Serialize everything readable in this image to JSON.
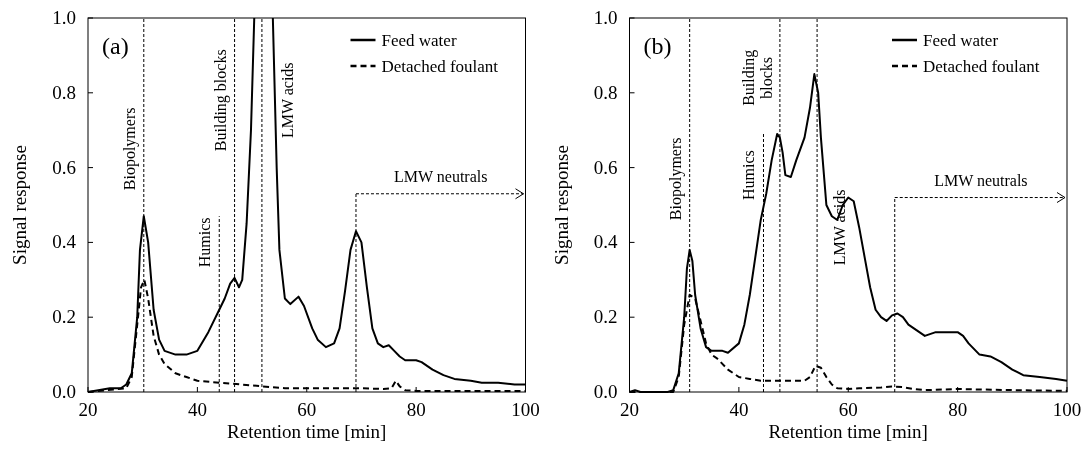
{
  "chart_data": [
    {
      "type": "line",
      "title": "(a)",
      "xlabel": "Retention time [min]",
      "ylabel": "Signal response",
      "xlim": [
        20,
        100
      ],
      "xticks": [
        20,
        40,
        60,
        80,
        100
      ],
      "ylim": [
        0,
        1
      ],
      "yticks": [
        {
          "value": 0,
          "label": "0.0"
        },
        {
          "value": 0.2,
          "label": "0.2"
        },
        {
          "value": 0.4,
          "label": "0.4"
        },
        {
          "value": 0.6,
          "label": "0.6"
        },
        {
          "value": 0.8,
          "label": "0.8"
        },
        {
          "value": 1,
          "label": "1.0"
        }
      ],
      "legend": "top right",
      "grid": false,
      "series": [
        {
          "name": "Feed water",
          "color": "#000000",
          "line_style": "solid",
          "x": [
            20,
            24,
            26,
            27,
            28,
            29,
            29.5,
            30.2,
            31,
            32,
            33,
            34,
            36,
            38,
            40,
            42,
            44,
            45,
            46,
            46.8,
            47.6,
            48.2,
            49,
            49.8,
            50.4,
            52,
            53.8,
            54.5,
            55,
            56,
            57,
            58.5,
            59.5,
            61,
            62,
            63.5,
            65,
            66,
            67,
            68,
            69,
            70,
            71,
            72,
            73,
            74,
            75,
            76,
            77,
            78,
            80,
            81,
            83,
            85,
            87,
            90,
            92,
            95,
            98,
            100
          ],
          "values": [
            0,
            0.01,
            0.01,
            0.02,
            0.05,
            0.2,
            0.38,
            0.47,
            0.4,
            0.22,
            0.14,
            0.11,
            0.1,
            0.1,
            0.11,
            0.16,
            0.22,
            0.25,
            0.29,
            0.305,
            0.28,
            0.3,
            0.45,
            0.7,
            1,
            null,
            1,
            0.6,
            0.38,
            0.25,
            0.235,
            0.255,
            0.23,
            0.17,
            0.14,
            0.12,
            0.13,
            0.17,
            0.27,
            0.38,
            0.43,
            0.4,
            0.28,
            0.17,
            0.13,
            0.12,
            0.125,
            0.11,
            0.095,
            0.085,
            0.085,
            0.08,
            0.06,
            0.045,
            0.035,
            0.03,
            0.025,
            0.025,
            0.02,
            0.02
          ]
        },
        {
          "name": "Detached foulant",
          "color": "#000000",
          "line_style": "dashed",
          "x": [
            20,
            27,
            28,
            29,
            29.7,
            30.3,
            31,
            32,
            33,
            34,
            36,
            38,
            40,
            44,
            48,
            52,
            56,
            60,
            70,
            74,
            75.5,
            76.3,
            77,
            78,
            80,
            100
          ],
          "values": [
            0,
            0.01,
            0.04,
            0.18,
            0.28,
            0.3,
            0.25,
            0.15,
            0.1,
            0.075,
            0.05,
            0.04,
            0.03,
            0.025,
            0.02,
            0.015,
            0.01,
            0.01,
            0.01,
            0.008,
            0.01,
            0.03,
            0.015,
            0.005,
            0.003,
            0.003
          ]
        }
      ],
      "ref_lines": [
        {
          "axis": "x",
          "value": 30.2,
          "label": "Biopolymers",
          "color": "#000000",
          "line_style": "dashed"
        },
        {
          "axis": "x",
          "value": 44,
          "label": "Humics",
          "color": "#000000",
          "line_style": "dashed"
        },
        {
          "axis": "x",
          "value": 46.8,
          "label": "Building blocks",
          "color": "#000000",
          "line_style": "dashed"
        },
        {
          "axis": "x",
          "value": 51.8,
          "label": "LMW acids",
          "color": "#000000",
          "line_style": "dashed"
        },
        {
          "axis": "x",
          "value": 69,
          "label": "LMW neutrals",
          "color": "#000000",
          "line_style": "dashed"
        }
      ]
    },
    {
      "type": "line",
      "title": "(b)",
      "xlabel": "Retention time [min]",
      "ylabel": "Signal response",
      "xlim": [
        20,
        100
      ],
      "xticks": [
        20,
        40,
        60,
        80,
        100
      ],
      "ylim": [
        0,
        1
      ],
      "yticks": [
        {
          "value": 0,
          "label": "0.0"
        },
        {
          "value": 0.2,
          "label": "0.2"
        },
        {
          "value": 0.4,
          "label": "0.4"
        },
        {
          "value": 0.6,
          "label": "0.6"
        },
        {
          "value": 0.8,
          "label": "0.8"
        },
        {
          "value": 1,
          "label": "1.0"
        }
      ],
      "legend": "top right",
      "grid": false,
      "series": [
        {
          "name": "Feed water",
          "color": "#000000",
          "line_style": "solid",
          "x": [
            20,
            21,
            22,
            27,
            28,
            29,
            30,
            30.5,
            31,
            31.5,
            32,
            33,
            34,
            35,
            37,
            38,
            40,
            41,
            42,
            43,
            44,
            45,
            46,
            47,
            47.5,
            48,
            48.5,
            49.5,
            50.5,
            52,
            53,
            53.8,
            54.5,
            55,
            56,
            57,
            58,
            59,
            60,
            61,
            62,
            63,
            64,
            65,
            66,
            67,
            68,
            69,
            70,
            71,
            72,
            74,
            76,
            78,
            80,
            81,
            82,
            84,
            86,
            88,
            90,
            92,
            95,
            98,
            100
          ],
          "values": [
            0,
            0.005,
            0,
            0,
            0.005,
            0.05,
            0.2,
            0.33,
            0.38,
            0.35,
            0.26,
            0.17,
            0.12,
            0.11,
            0.11,
            0.105,
            0.13,
            0.18,
            0.26,
            0.36,
            0.46,
            0.53,
            0.62,
            0.69,
            0.68,
            0.64,
            0.58,
            0.575,
            0.62,
            0.68,
            0.76,
            0.85,
            0.8,
            0.68,
            0.5,
            0.47,
            0.46,
            0.5,
            0.52,
            0.51,
            0.44,
            0.36,
            0.28,
            0.22,
            0.2,
            0.19,
            0.205,
            0.21,
            0.2,
            0.18,
            0.17,
            0.15,
            0.16,
            0.16,
            0.16,
            0.15,
            0.13,
            0.1,
            0.095,
            0.08,
            0.06,
            0.045,
            0.04,
            0.035,
            0.03
          ]
        },
        {
          "name": "Detached foulant",
          "color": "#000000",
          "line_style": "dashed",
          "x": [
            20,
            28,
            29,
            30,
            31,
            32,
            33,
            34,
            35,
            36,
            38,
            40,
            42,
            44,
            48,
            52,
            53,
            54,
            55,
            56,
            57,
            58,
            60,
            62,
            66,
            68,
            70,
            72,
            74,
            80,
            90,
            100
          ],
          "values": [
            0,
            0,
            0.04,
            0.18,
            0.26,
            0.25,
            0.19,
            0.13,
            0.1,
            0.09,
            0.06,
            0.04,
            0.035,
            0.03,
            0.03,
            0.03,
            0.04,
            0.07,
            0.065,
            0.04,
            0.02,
            0.01,
            0.008,
            0.01,
            0.012,
            0.015,
            0.013,
            0.008,
            0.005,
            0.008,
            0.005,
            0.003
          ]
        }
      ],
      "ref_lines": [
        {
          "axis": "x",
          "value": 31,
          "label": "Biopolymers",
          "color": "#000000",
          "line_style": "dashed"
        },
        {
          "axis": "x",
          "value": 44.5,
          "label": "Humics",
          "color": "#000000",
          "line_style": "dashed"
        },
        {
          "axis": "x",
          "value": 47.5,
          "label": "Building\nblocks",
          "color": "#000000",
          "line_style": "dashed"
        },
        {
          "axis": "x",
          "value": 54.3,
          "label": "LMW acids",
          "color": "#000000",
          "line_style": "dashed"
        },
        {
          "axis": "x",
          "value": 68.5,
          "label": "LMW neutrals",
          "color": "#000000",
          "line_style": "dashed"
        }
      ]
    }
  ]
}
